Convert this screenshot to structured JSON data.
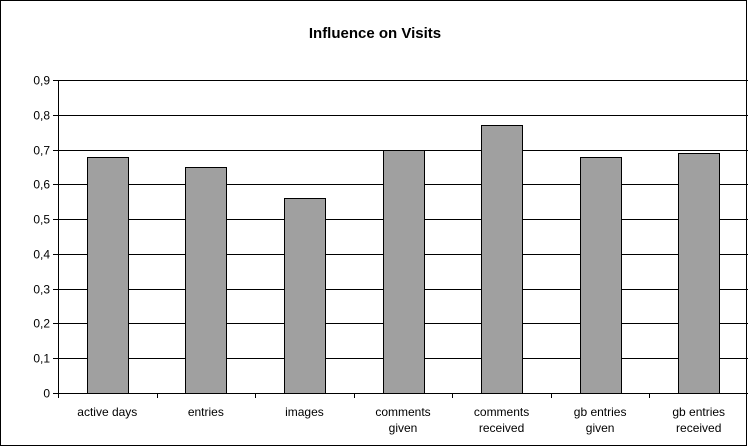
{
  "chart_data": {
    "type": "bar",
    "title": "Influence on Visits",
    "xlabel": "",
    "ylabel": "",
    "categories": [
      [
        "active days"
      ],
      [
        "entries"
      ],
      [
        "images"
      ],
      [
        "comments",
        "given"
      ],
      [
        "comments",
        "received"
      ],
      [
        "gb entries",
        "given"
      ],
      [
        "gb entries",
        "received"
      ]
    ],
    "values": [
      0.68,
      0.65,
      0.56,
      0.7,
      0.77,
      0.68,
      0.69
    ],
    "ylim": [
      0,
      0.9
    ],
    "yticks": [
      0,
      0.1,
      0.2,
      0.3,
      0.4,
      0.5,
      0.6,
      0.7,
      0.8,
      0.9
    ],
    "ytick_labels": [
      "0",
      "0,1",
      "0,2",
      "0,3",
      "0,4",
      "0,5",
      "0,6",
      "0,7",
      "0,8",
      "0,9"
    ],
    "grid": true,
    "legend": "none",
    "colors": {
      "bar_fill": "#a0a0a0",
      "bar_stroke": "#000000",
      "grid": "#000000",
      "background": "#ffffff"
    }
  }
}
